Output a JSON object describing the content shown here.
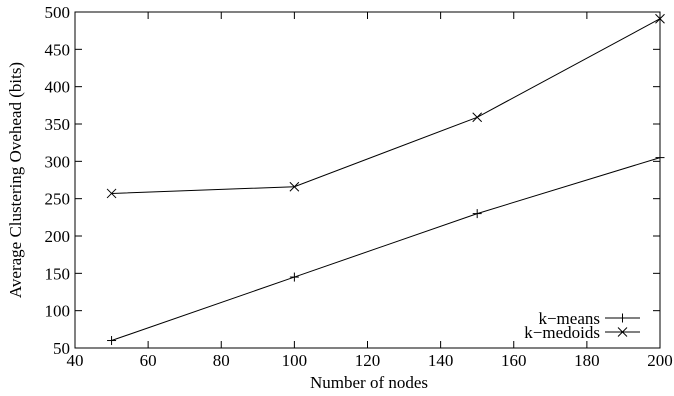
{
  "chart_data": {
    "type": "line",
    "title": "",
    "xlabel": "Number of nodes",
    "ylabel": "Average Clustering Ovehead (bits)",
    "xlim": [
      40,
      200
    ],
    "ylim": [
      50,
      500
    ],
    "xticks": [
      40,
      60,
      80,
      100,
      120,
      140,
      160,
      180,
      200
    ],
    "yticks": [
      50,
      100,
      150,
      200,
      250,
      300,
      350,
      400,
      450,
      500
    ],
    "grid": false,
    "legend_position": "bottom-right",
    "series": [
      {
        "name": "k−means",
        "marker": "plus",
        "x": [
          50,
          100,
          150,
          200
        ],
        "y": [
          60,
          145,
          230,
          305
        ]
      },
      {
        "name": "k−medoids",
        "marker": "cross",
        "x": [
          50,
          100,
          150,
          200
        ],
        "y": [
          257,
          266,
          359,
          491
        ]
      }
    ]
  }
}
